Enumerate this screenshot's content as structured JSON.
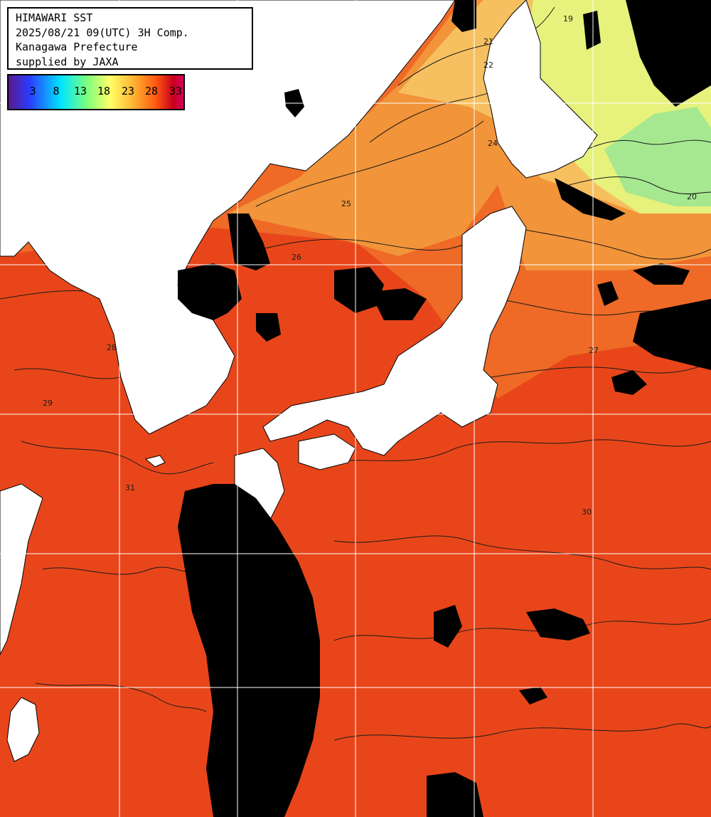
{
  "info": {
    "line1": "HIMAWARI SST",
    "line2": "2025/08/21 09(UTC) 3H Comp.",
    "line3": "Kanagawa Prefecture",
    "line4": "supplied by JAXA"
  },
  "legend": {
    "ticks": [
      "3",
      "8",
      "13",
      "18",
      "23",
      "28",
      "33"
    ],
    "colors": [
      "#5a1a8c",
      "#2a3cff",
      "#00e5ff",
      "#7dff7d",
      "#ffff66",
      "#ffb030",
      "#ff5a10",
      "#c8001e",
      "#d8005a"
    ]
  },
  "colors": {
    "cloud": "#000000",
    "land": "#ffffff",
    "warm_sea": "#e8461a",
    "mid_sea": "#f07a2a",
    "cool_sea": "#f5b050",
    "cold_sea": "#d8f07a",
    "coldest_sea": "#9ee68c",
    "grid": "#ffffff"
  },
  "contour_labels": [
    "21",
    "22",
    "19",
    "24",
    "25",
    "26",
    "27",
    "28",
    "29",
    "30",
    "31",
    "20"
  ]
}
